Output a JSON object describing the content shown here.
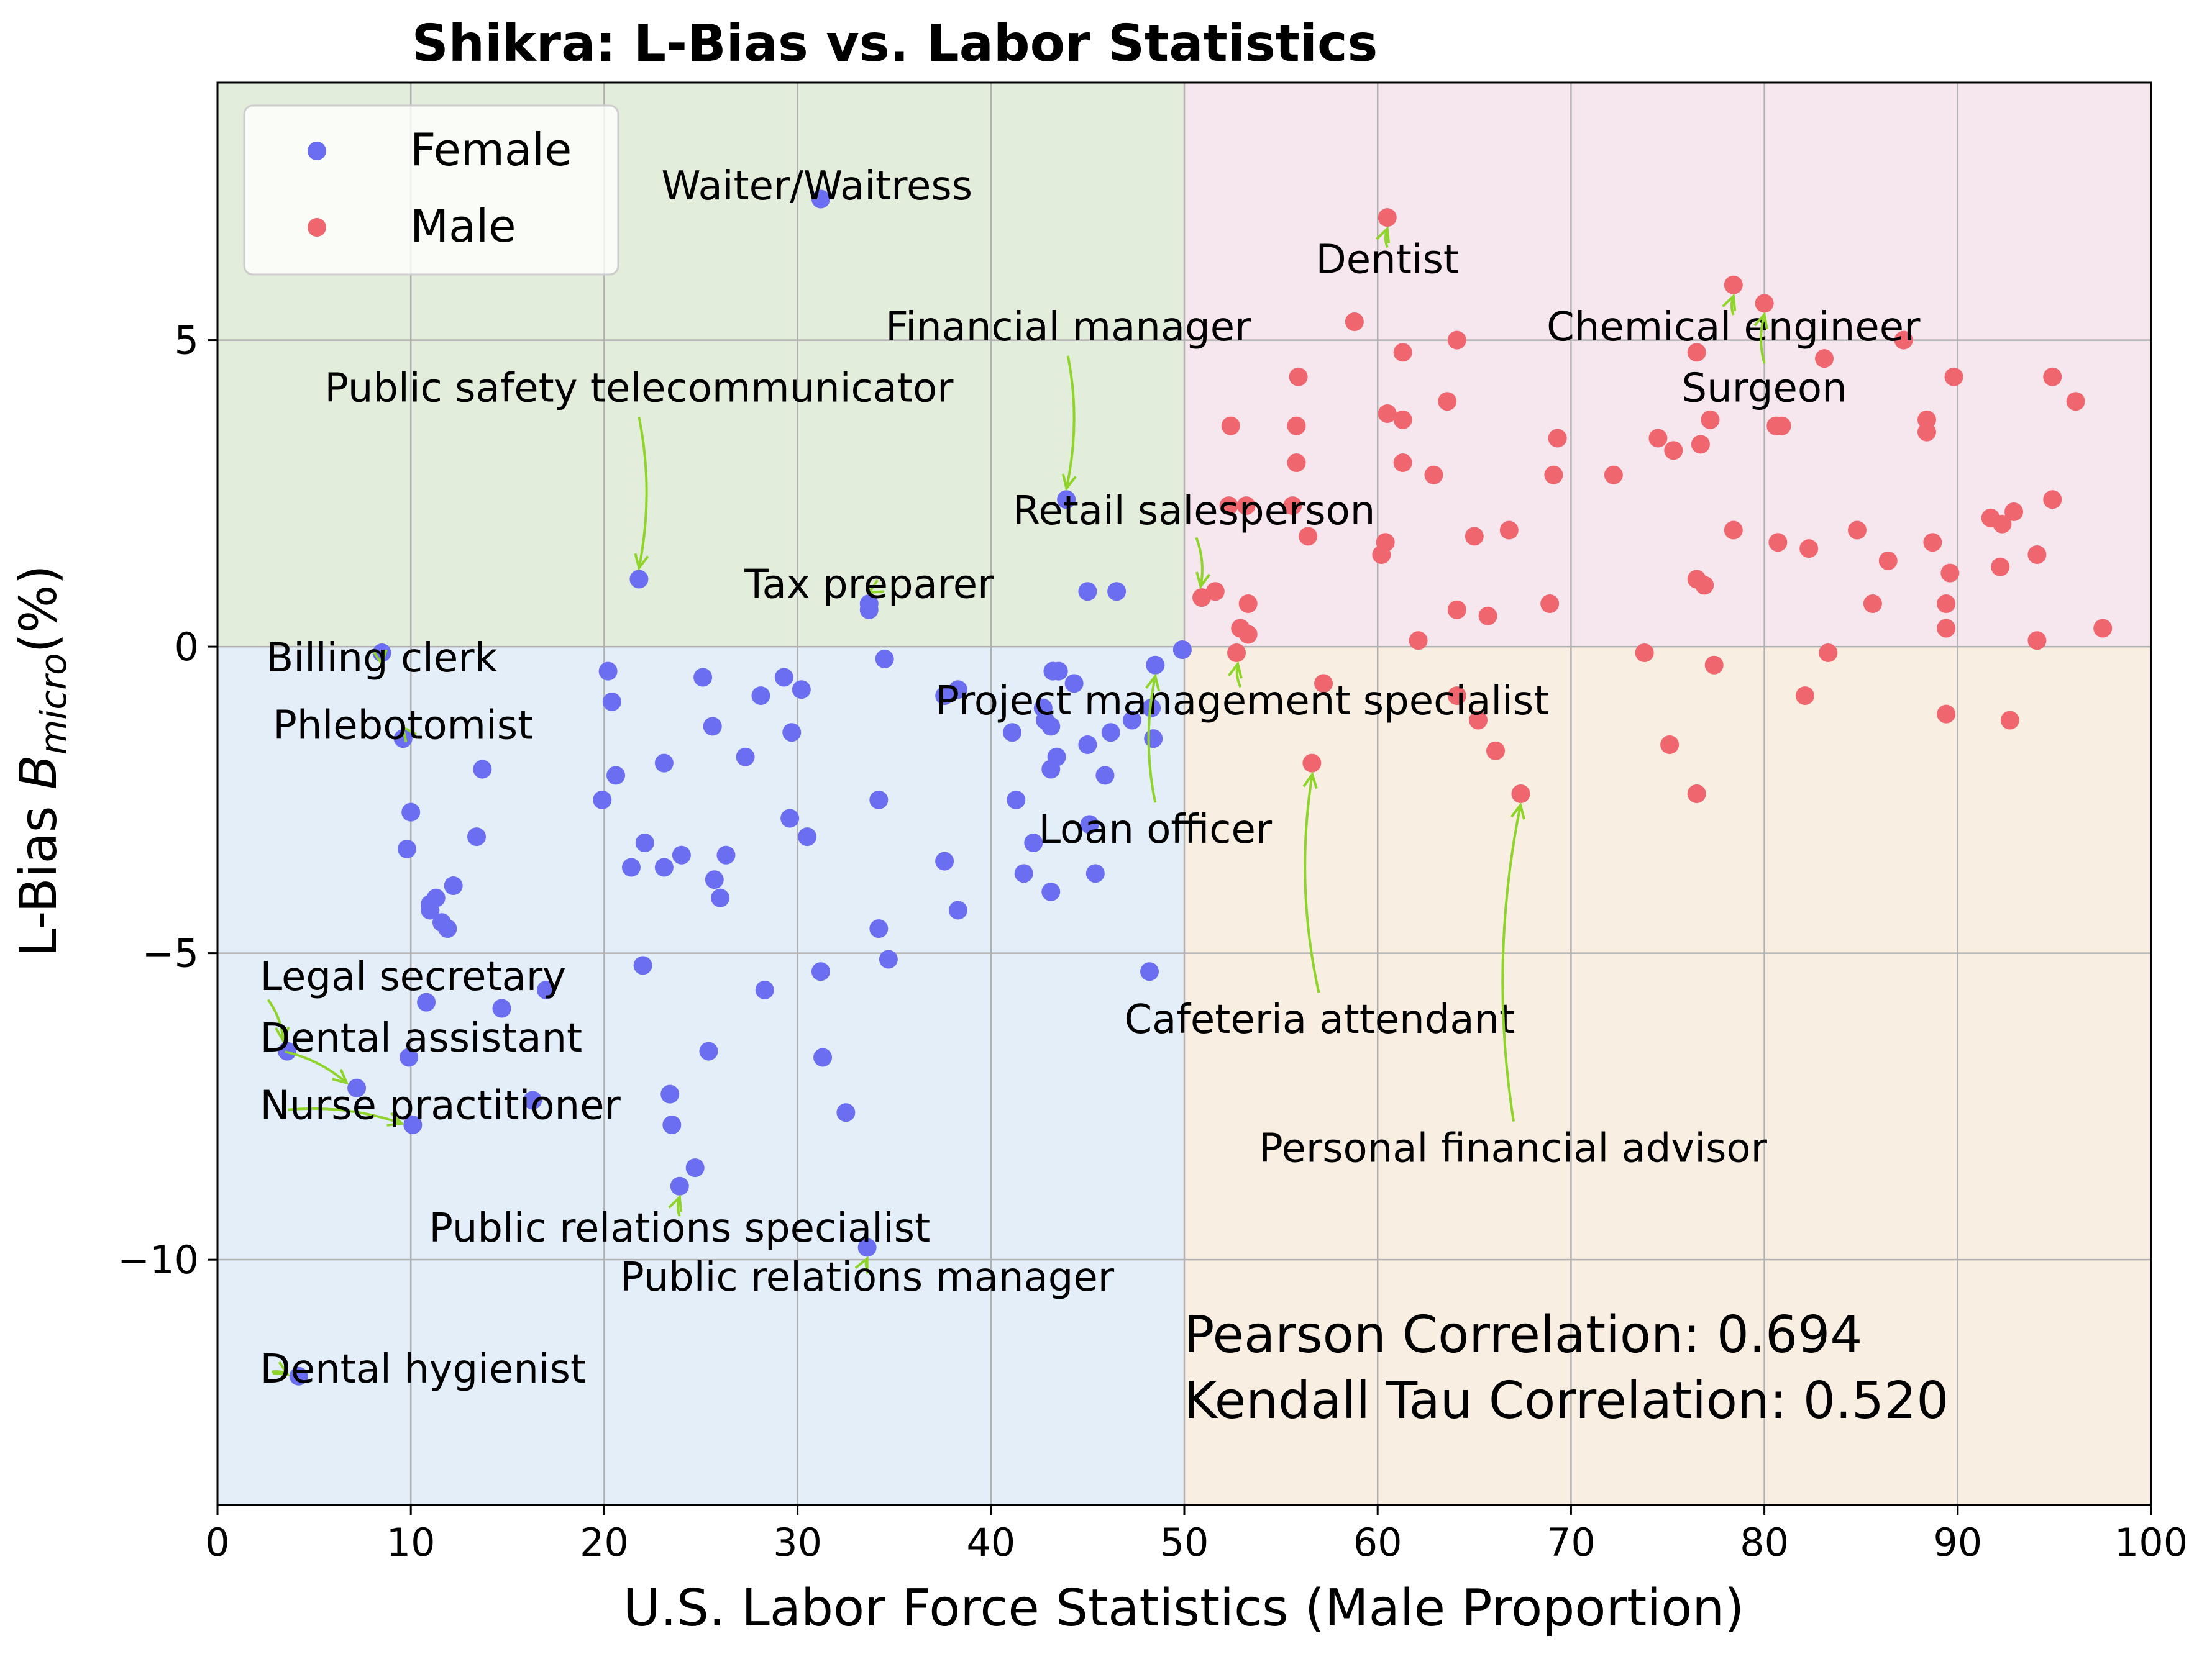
{
  "chart_data": {
    "type": "scatter",
    "title": "Shikra: L-Bias vs. Labor Statistics",
    "xlabel": "U.S. Labor Force Statistics (Male Proportion)",
    "ylabel_main": "L-Bias  ",
    "ylabel_sym": "B",
    "ylabel_sub": "micro",
    "ylabel_tail": "(%)",
    "xlim": [
      0,
      100
    ],
    "ylim": [
      -14,
      9.2
    ],
    "xticks": [
      0,
      10,
      20,
      30,
      40,
      50,
      60,
      70,
      80,
      90,
      100
    ],
    "xtick_labels": [
      "0",
      "10",
      "20",
      "30",
      "40",
      "50",
      "60",
      "70",
      "80",
      "90",
      "100"
    ],
    "yticks": [
      -10,
      -5,
      0,
      5
    ],
    "ytick_labels": [
      "−10",
      "−5",
      "0",
      "5"
    ],
    "grid": true,
    "legend_position": "top-left",
    "quadrant_colors": {
      "top_left": "#e3eddb",
      "top_right": "#f6e7ef",
      "bottom_left": "#e3eef8",
      "bottom_right": "#f8eee2"
    },
    "annotation_arrow_color": "#8fd42a",
    "series": [
      {
        "name": "Female",
        "color": "#6b6ef0",
        "points": [
          [
            31.2,
            7.3
          ],
          [
            43.9,
            2.4
          ],
          [
            21.8,
            1.1
          ],
          [
            33.7,
            0.7
          ],
          [
            33.7,
            0.6
          ],
          [
            45.0,
            0.9
          ],
          [
            46.5,
            0.9
          ],
          [
            8.5,
            -0.1
          ],
          [
            9.6,
            -1.5
          ],
          [
            13.7,
            -2.0
          ],
          [
            10.0,
            -2.7
          ],
          [
            9.8,
            -3.3
          ],
          [
            11.0,
            -4.2
          ],
          [
            11.3,
            -4.1
          ],
          [
            11.6,
            -4.5
          ],
          [
            11.0,
            -4.3
          ],
          [
            11.9,
            -4.6
          ],
          [
            12.2,
            -3.9
          ],
          [
            13.4,
            -3.1
          ],
          [
            10.8,
            -5.8
          ],
          [
            9.9,
            -6.7
          ],
          [
            10.1,
            -7.8
          ],
          [
            3.6,
            -6.6
          ],
          [
            7.2,
            -7.2
          ],
          [
            4.2,
            -11.9
          ],
          [
            14.7,
            -5.9
          ],
          [
            17.0,
            -5.6
          ],
          [
            16.3,
            -7.4
          ],
          [
            20.2,
            -0.4
          ],
          [
            20.4,
            -0.9
          ],
          [
            20.6,
            -2.1
          ],
          [
            19.9,
            -2.5
          ],
          [
            21.4,
            -3.6
          ],
          [
            22.1,
            -3.2
          ],
          [
            22.0,
            -5.2
          ],
          [
            23.1,
            -1.9
          ],
          [
            23.1,
            -3.6
          ],
          [
            24.0,
            -3.4
          ],
          [
            23.4,
            -7.3
          ],
          [
            23.5,
            -7.8
          ],
          [
            23.9,
            -8.8
          ],
          [
            24.7,
            -8.5
          ],
          [
            25.1,
            -0.5
          ],
          [
            25.6,
            -1.3
          ],
          [
            25.7,
            -3.8
          ],
          [
            26.0,
            -4.1
          ],
          [
            26.3,
            -3.4
          ],
          [
            25.4,
            -6.6
          ],
          [
            27.3,
            -1.8
          ],
          [
            28.1,
            -0.8
          ],
          [
            28.3,
            -5.6
          ],
          [
            29.3,
            -0.5
          ],
          [
            29.7,
            -1.4
          ],
          [
            30.2,
            -0.7
          ],
          [
            29.6,
            -2.8
          ],
          [
            30.5,
            -3.1
          ],
          [
            31.2,
            -5.3
          ],
          [
            31.3,
            -6.7
          ],
          [
            32.5,
            -7.6
          ],
          [
            34.5,
            -0.2
          ],
          [
            34.2,
            -2.5
          ],
          [
            34.2,
            -4.6
          ],
          [
            34.7,
            -5.1
          ],
          [
            33.6,
            -9.8
          ],
          [
            37.6,
            -0.8
          ],
          [
            38.3,
            -0.7
          ],
          [
            37.6,
            -3.5
          ],
          [
            38.3,
            -4.3
          ],
          [
            41.1,
            -1.4
          ],
          [
            41.3,
            -2.5
          ],
          [
            41.7,
            -3.7
          ],
          [
            42.2,
            -3.2
          ],
          [
            42.7,
            -1.0
          ],
          [
            42.8,
            -1.2
          ],
          [
            43.1,
            -1.3
          ],
          [
            43.2,
            -0.4
          ],
          [
            43.5,
            -0.4
          ],
          [
            43.1,
            -2.0
          ],
          [
            43.4,
            -1.8
          ],
          [
            43.1,
            -4.0
          ],
          [
            44.3,
            -0.6
          ],
          [
            45.0,
            -1.6
          ],
          [
            45.1,
            -2.9
          ],
          [
            45.4,
            -3.7
          ],
          [
            45.9,
            -2.1
          ],
          [
            46.2,
            -1.4
          ],
          [
            47.3,
            -1.2
          ],
          [
            48.3,
            -1.0
          ],
          [
            48.4,
            -1.5
          ],
          [
            48.5,
            -0.3
          ],
          [
            48.2,
            -5.3
          ],
          [
            49.9,
            -0.05
          ]
        ]
      },
      {
        "name": "Male",
        "color": "#f0666e",
        "points": [
          [
            60.5,
            7.0
          ],
          [
            78.4,
            5.9
          ],
          [
            80.0,
            5.6
          ],
          [
            58.8,
            5.3
          ],
          [
            61.3,
            4.8
          ],
          [
            64.1,
            5.0
          ],
          [
            76.5,
            4.8
          ],
          [
            87.2,
            5.0
          ],
          [
            83.1,
            4.7
          ],
          [
            89.8,
            4.4
          ],
          [
            94.9,
            4.4
          ],
          [
            96.1,
            4.0
          ],
          [
            80.6,
            3.6
          ],
          [
            80.9,
            3.6
          ],
          [
            88.4,
            3.7
          ],
          [
            88.4,
            3.5
          ],
          [
            55.9,
            4.4
          ],
          [
            52.4,
            3.6
          ],
          [
            55.8,
            3.6
          ],
          [
            60.5,
            3.8
          ],
          [
            61.3,
            3.7
          ],
          [
            63.6,
            4.0
          ],
          [
            74.5,
            3.4
          ],
          [
            75.3,
            3.2
          ],
          [
            76.7,
            3.3
          ],
          [
            77.2,
            3.7
          ],
          [
            69.3,
            3.4
          ],
          [
            55.8,
            3.0
          ],
          [
            61.3,
            3.0
          ],
          [
            62.9,
            2.8
          ],
          [
            69.1,
            2.8
          ],
          [
            72.2,
            2.8
          ],
          [
            53.2,
            2.3
          ],
          [
            52.3,
            2.3
          ],
          [
            55.6,
            2.3
          ],
          [
            56.4,
            1.8
          ],
          [
            60.4,
            1.7
          ],
          [
            60.2,
            1.5
          ],
          [
            65.0,
            1.8
          ],
          [
            66.8,
            1.9
          ],
          [
            78.4,
            1.9
          ],
          [
            80.7,
            1.7
          ],
          [
            82.3,
            1.6
          ],
          [
            84.8,
            1.9
          ],
          [
            86.4,
            1.4
          ],
          [
            88.7,
            1.7
          ],
          [
            89.6,
            1.2
          ],
          [
            91.7,
            2.1
          ],
          [
            92.3,
            2.0
          ],
          [
            92.9,
            2.2
          ],
          [
            94.9,
            2.4
          ],
          [
            92.2,
            1.3
          ],
          [
            94.1,
            1.5
          ],
          [
            51.6,
            0.9
          ],
          [
            50.9,
            0.8
          ],
          [
            53.3,
            0.7
          ],
          [
            52.9,
            0.3
          ],
          [
            53.3,
            0.2
          ],
          [
            64.1,
            0.6
          ],
          [
            65.7,
            0.5
          ],
          [
            62.1,
            0.1
          ],
          [
            68.9,
            0.7
          ],
          [
            76.5,
            1.1
          ],
          [
            76.9,
            1.0
          ],
          [
            85.6,
            0.7
          ],
          [
            89.4,
            0.7
          ],
          [
            89.4,
            0.3
          ],
          [
            94.1,
            0.1
          ],
          [
            97.5,
            0.3
          ],
          [
            52.7,
            -0.1
          ],
          [
            57.2,
            -0.6
          ],
          [
            64.1,
            -0.8
          ],
          [
            73.8,
            -0.1
          ],
          [
            77.4,
            -0.3
          ],
          [
            83.3,
            -0.1
          ],
          [
            82.1,
            -0.8
          ],
          [
            65.2,
            -1.2
          ],
          [
            66.1,
            -1.7
          ],
          [
            75.1,
            -1.6
          ],
          [
            89.4,
            -1.1
          ],
          [
            92.7,
            -1.2
          ],
          [
            56.6,
            -1.9
          ],
          [
            67.4,
            -2.4
          ],
          [
            76.5,
            -2.4
          ]
        ]
      }
    ],
    "annotations": [
      {
        "text": "Waiter/Waitress",
        "text_xy": [
          31.0,
          7.5
        ],
        "point": [
          31.2,
          7.3
        ],
        "arrow": false
      },
      {
        "text": "Financial manager",
        "text_xy": [
          44.0,
          5.2
        ],
        "point": [
          43.9,
          2.4
        ],
        "arrow": true
      },
      {
        "text": "Public safety telecommunicator",
        "text_xy": [
          21.8,
          4.2
        ],
        "point": [
          21.8,
          1.1
        ],
        "arrow": true
      },
      {
        "text": "Tax preparer",
        "text_xy": [
          33.7,
          1.0
        ],
        "point": [
          33.7,
          0.7
        ],
        "arrow": true
      },
      {
        "text": "Retail salesperson",
        "text_xy": [
          50.5,
          2.2
        ],
        "point": [
          50.9,
          0.8
        ],
        "arrow": true
      },
      {
        "text": "Dentist",
        "text_xy": [
          60.5,
          6.3
        ],
        "point": [
          60.5,
          7.0
        ],
        "arrow": true
      },
      {
        "text": "Chemical engineer",
        "text_xy": [
          78.4,
          5.2
        ],
        "point": [
          78.4,
          5.9
        ],
        "arrow": true
      },
      {
        "text": "Surgeon",
        "text_xy": [
          80.0,
          4.2
        ],
        "point": [
          80.0,
          5.6
        ],
        "arrow": true
      },
      {
        "text": "Billing clerk",
        "text_xy": [
          8.5,
          -0.2
        ],
        "point": [
          8.5,
          -0.1
        ],
        "arrow": true
      },
      {
        "text": "Phlebotomist",
        "text_xy": [
          9.6,
          -1.3
        ],
        "point": [
          9.6,
          -1.5
        ],
        "arrow": true
      },
      {
        "text": "Project management specialist",
        "text_xy": [
          53.0,
          -0.9
        ],
        "point": [
          52.7,
          -0.1
        ],
        "arrow": true
      },
      {
        "text": "Loan officer",
        "text_xy": [
          48.5,
          -3.0
        ],
        "point": [
          48.5,
          -0.3
        ],
        "arrow": true
      },
      {
        "text": "Cafeteria attendant",
        "text_xy": [
          57.0,
          -6.1
        ],
        "point": [
          56.6,
          -1.9
        ],
        "arrow": true
      },
      {
        "text": "Personal financial advisor",
        "text_xy": [
          67.0,
          -8.2
        ],
        "point": [
          67.4,
          -2.4
        ],
        "arrow": true
      },
      {
        "text": "Legal secretary",
        "text_xy": [
          2.2,
          -5.4
        ],
        "point": [
          3.6,
          -6.6
        ],
        "arrow": true
      },
      {
        "text": "Dental assistant",
        "text_xy": [
          2.2,
          -6.4
        ],
        "point": [
          7.2,
          -7.2
        ],
        "arrow": true
      },
      {
        "text": "Nurse practitioner",
        "text_xy": [
          2.2,
          -7.5
        ],
        "point": [
          10.1,
          -7.8
        ],
        "arrow": true
      },
      {
        "text": "Public relations specialist",
        "text_xy": [
          23.9,
          -9.5
        ],
        "point": [
          23.9,
          -8.8
        ],
        "arrow": true
      },
      {
        "text": "Public relations manager",
        "text_xy": [
          33.6,
          -10.3
        ],
        "point": [
          33.6,
          -9.8
        ],
        "arrow": true
      },
      {
        "text": "Dental hygienist",
        "text_xy": [
          2.2,
          -11.8
        ],
        "point": [
          4.2,
          -11.9
        ],
        "arrow": true
      }
    ],
    "stats": {
      "pearson": "Pearson Correlation: 0.694",
      "kendall": "Kendall Tau Correlation: 0.520"
    }
  }
}
